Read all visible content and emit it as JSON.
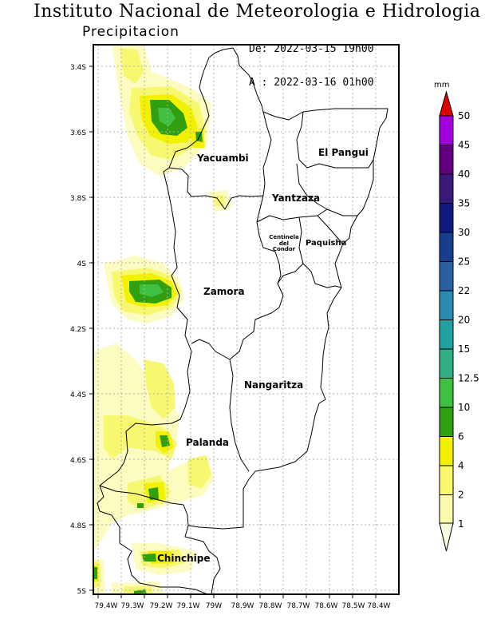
{
  "header": {
    "title": "Instituto Nacional de Meteorologia e Hidrologia",
    "subtitle": "Precipitacion",
    "date_from": "De: 2022-03-15 19h00",
    "date_to": "A : 2022-03-16 01h00"
  },
  "map": {
    "lat_ticks": [
      "3.4S",
      "3.6S",
      "3.8S",
      "4S",
      "4.2S",
      "4.4S",
      "4.6S",
      "4.8S",
      "5S"
    ],
    "lon_ticks": [
      "79.4W",
      "79.3W",
      "79.2W",
      "79.1W",
      "79W",
      "78.9W",
      "78.8W",
      "78.7W",
      "78.6W",
      "78.5W",
      "78.4W"
    ],
    "regions": [
      {
        "name": "Yacuambi"
      },
      {
        "name": "El Pangui"
      },
      {
        "name": "Yantzaza"
      },
      {
        "name": "Centinela"
      },
      {
        "name": "del"
      },
      {
        "name": "Condor"
      },
      {
        "name": "Paquisha"
      },
      {
        "name": "Zamora"
      },
      {
        "name": "Nangaritza"
      },
      {
        "name": "Palanda"
      },
      {
        "name": "Chinchipe"
      }
    ]
  },
  "legend": {
    "unit": "mm",
    "levels": [
      {
        "label": "50",
        "color": "#e00000"
      },
      {
        "label": "45",
        "color": "#a000e0"
      },
      {
        "label": "40",
        "color": "#600080"
      },
      {
        "label": "35",
        "color": "#3a1a78"
      },
      {
        "label": "30",
        "color": "#101a80"
      },
      {
        "label": "25",
        "color": "#1a3c8c"
      },
      {
        "label": "22",
        "color": "#2a5fa0"
      },
      {
        "label": "20",
        "color": "#2a8cb0"
      },
      {
        "label": "15",
        "color": "#25a0a0"
      },
      {
        "label": "12.5",
        "color": "#30b080"
      },
      {
        "label": "10",
        "color": "#40c040"
      },
      {
        "label": "6",
        "color": "#30a010"
      },
      {
        "label": "4",
        "color": "#f2f200"
      },
      {
        "label": "2",
        "color": "#f8f870"
      },
      {
        "label": "1",
        "color": "#fafaaa"
      }
    ],
    "bottom_color": "#fdfde0"
  }
}
